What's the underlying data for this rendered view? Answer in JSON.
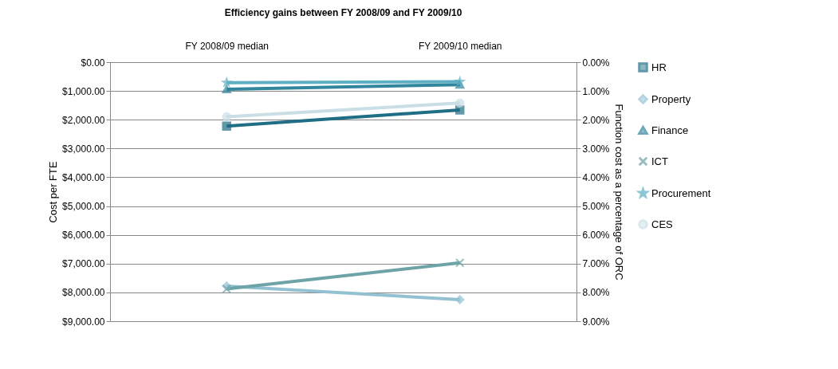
{
  "chart_data": {
    "type": "line",
    "title": "Efficiency gains between FY 2008/09  and FY 2009/10",
    "categories": [
      "FY 2008/09  median",
      "FY 2009/10  median"
    ],
    "ylabel": "Cost per FTE",
    "y2label": "Function cost as a percentage of ORC",
    "ylim": [
      9000,
      0
    ],
    "yticks": [
      {
        "value": 0,
        "label": "$0.00"
      },
      {
        "value": 1000,
        "label": "$1,000.00"
      },
      {
        "value": 2000,
        "label": "$2,000.00"
      },
      {
        "value": 3000,
        "label": "$3,000.00"
      },
      {
        "value": 4000,
        "label": "$4,000.00"
      },
      {
        "value": 5000,
        "label": "$5,000.00"
      },
      {
        "value": 6000,
        "label": "$6,000.00"
      },
      {
        "value": 7000,
        "label": "$7,000.00"
      },
      {
        "value": 8000,
        "label": "$8,000.00"
      },
      {
        "value": 9000,
        "label": "$9,000.00"
      }
    ],
    "y2lim": [
      9,
      0
    ],
    "y2ticks": [
      {
        "value": 0,
        "label": "0.00%"
      },
      {
        "value": 1,
        "label": "1.00%"
      },
      {
        "value": 2,
        "label": "2.00%"
      },
      {
        "value": 3,
        "label": "3.00%"
      },
      {
        "value": 4,
        "label": "4.00%"
      },
      {
        "value": 5,
        "label": "5.00%"
      },
      {
        "value": 6,
        "label": "6.00%"
      },
      {
        "value": 7,
        "label": "7.00%"
      },
      {
        "value": 8,
        "label": "8.00%"
      },
      {
        "value": 9,
        "label": "9.00%"
      }
    ],
    "grid": "y",
    "legend": "right",
    "series": [
      {
        "name": "HR",
        "color": "#1f6e86",
        "marker": "square",
        "values": [
          2220,
          1660
        ]
      },
      {
        "name": "Property",
        "color": "#93c1d1",
        "marker": "diamond",
        "values": [
          7780,
          8250
        ]
      },
      {
        "name": "Finance",
        "color": "#31859c",
        "marker": "triangle",
        "axis": "y2",
        "values": [
          0.94,
          0.78
        ]
      },
      {
        "name": "ICT",
        "color": "#6ea3a8",
        "marker": "cross",
        "values": [
          7880,
          6970
        ]
      },
      {
        "name": "Procurement",
        "color": "#5eaec4",
        "marker": "star",
        "axis": "y2",
        "values": [
          0.71,
          0.68
        ]
      },
      {
        "name": "CES",
        "color": "#c9dfe5",
        "marker": "circle",
        "axis": "y2",
        "values": [
          1.9,
          1.42
        ]
      }
    ]
  }
}
